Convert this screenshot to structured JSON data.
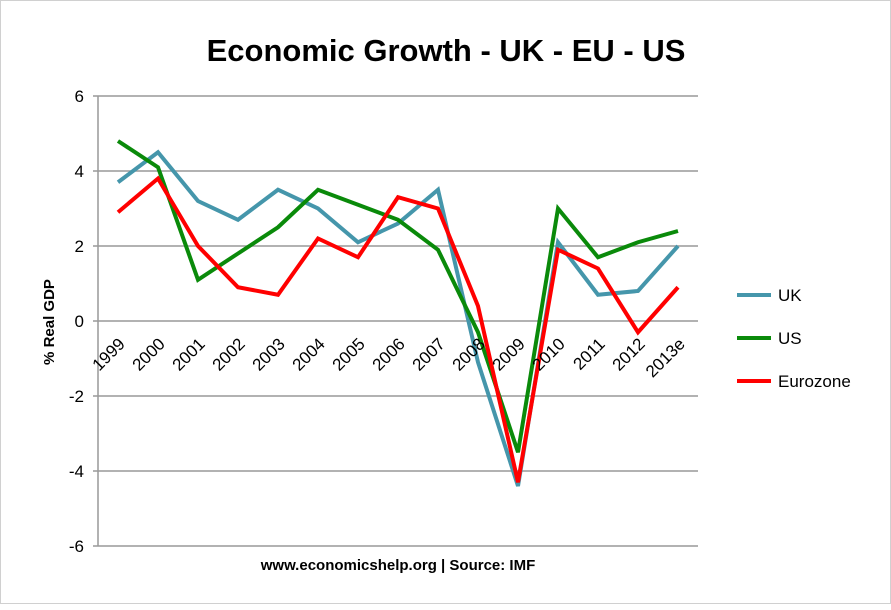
{
  "chart_data": {
    "type": "line",
    "title": "Economic Growth - UK - EU - US",
    "xlabel": "www.economicshelp.org | Source: IMF",
    "ylabel": "% Real GDP",
    "ylim": [
      -6,
      6
    ],
    "yticks": [
      6,
      4,
      2,
      0,
      -2,
      -4,
      -6
    ],
    "grid": true,
    "legend_placement": "right",
    "categories": [
      "1999",
      "2000",
      "2001",
      "2002",
      "2003",
      "2004",
      "2005",
      "2006",
      "2007",
      "2008",
      "2009",
      "2010",
      "2011",
      "2012",
      "2013e"
    ],
    "series": [
      {
        "name": "UK",
        "color": "#4596ab",
        "values": [
          3.7,
          4.5,
          3.2,
          2.7,
          3.5,
          3.0,
          2.1,
          2.6,
          3.5,
          -1.1,
          -4.4,
          2.1,
          0.7,
          0.8,
          2.0
        ]
      },
      {
        "name": "US",
        "color": "#0a8a0a",
        "values": [
          4.8,
          4.1,
          1.1,
          1.8,
          2.5,
          3.5,
          3.1,
          2.7,
          1.9,
          -0.3,
          -3.5,
          3.0,
          1.7,
          2.1,
          2.4
        ]
      },
      {
        "name": "Eurozone",
        "color": "#ff0000",
        "values": [
          2.9,
          3.8,
          2.0,
          0.9,
          0.7,
          2.2,
          1.7,
          3.3,
          3.0,
          0.4,
          -4.3,
          1.9,
          1.4,
          -0.3,
          0.9
        ]
      }
    ]
  }
}
